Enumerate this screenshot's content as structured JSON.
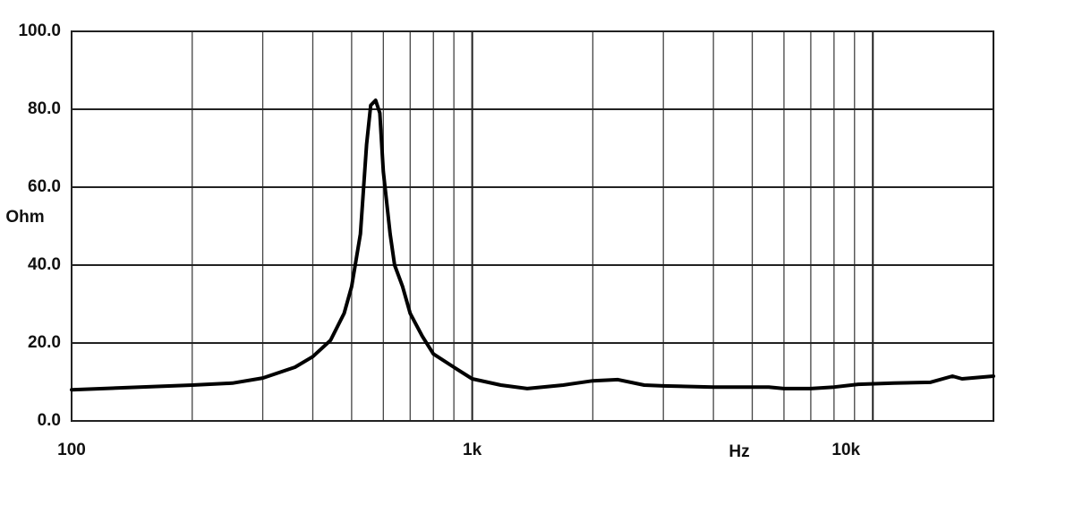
{
  "chart_data": {
    "type": "line",
    "xlabel": "Hz",
    "ylabel": "Ohm",
    "xscale": "log",
    "xlim": [
      100,
      20000
    ],
    "ylim": [
      0,
      100
    ],
    "xticks": [
      {
        "value": 100,
        "label": "100"
      },
      {
        "value": 1000,
        "label": "1k"
      },
      {
        "value": 10000,
        "label": "10k"
      }
    ],
    "yticks": [
      {
        "value": 0,
        "label": "0.0"
      },
      {
        "value": 20,
        "label": "20.0"
      },
      {
        "value": 40,
        "label": "40.0"
      },
      {
        "value": 60,
        "label": "60.0"
      },
      {
        "value": 80,
        "label": "80.0"
      },
      {
        "value": 100,
        "label": "100.0"
      }
    ],
    "grid": true,
    "series": [
      {
        "color": "#000000",
        "x": [
          100,
          200,
          252,
          300,
          361,
          400,
          443,
          479,
          500,
          526,
          545,
          558,
          574,
          588,
          600,
          624,
          640,
          670,
          700,
          750,
          800,
          900,
          1000,
          1179,
          1372,
          1686,
          2000,
          2310,
          2688,
          3000,
          4000,
          5500,
          6000,
          7000,
          8000,
          9200,
          11300,
          13900,
          15800,
          16700,
          20000
        ],
        "values": [
          8.0,
          9.2,
          9.7,
          11,
          13.8,
          16.5,
          20.7,
          27.6,
          34.5,
          48,
          71,
          81,
          82.3,
          79,
          64,
          48,
          40,
          34.5,
          27.6,
          21.8,
          17.2,
          13.8,
          10.8,
          9.2,
          8.3,
          9.2,
          10.3,
          10.6,
          9.2,
          9.0,
          8.7,
          8.7,
          8.3,
          8.3,
          8.7,
          9.4,
          9.7,
          9.9,
          11.5,
          10.8,
          11.5
        ]
      }
    ]
  }
}
